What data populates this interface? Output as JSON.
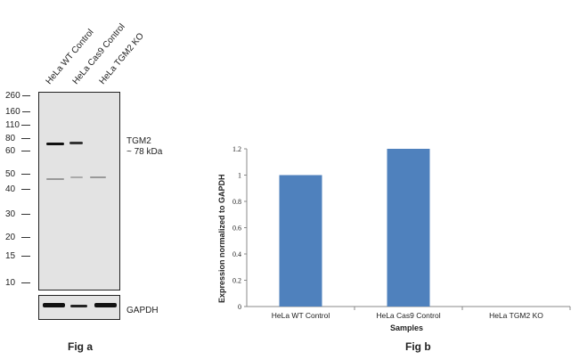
{
  "fig_a": {
    "caption": "Fig a",
    "lanes": [
      "HeLa WT Control",
      "HeLa Cas9 Control",
      "HeLa TGM2 KO"
    ],
    "markers": [
      "260",
      "160",
      "110",
      "80",
      "60",
      "50",
      "40",
      "30",
      "20",
      "15",
      "10"
    ],
    "target_label": "TGM2",
    "target_size": "~ 78 kDa",
    "loading_label": "GAPDH"
  },
  "chart_data": {
    "type": "bar",
    "title": "Fig b",
    "categories": [
      "HeLa WT Control",
      "HeLa Cas9 Control",
      "HeLa TGM2 KO"
    ],
    "values": [
      1.0,
      1.2,
      0
    ],
    "xlabel": "Samples",
    "ylabel": "Expression  normalized to GAPDH",
    "ylim": [
      0,
      1.2
    ],
    "yticks": [
      "0",
      "0.2",
      "0.4",
      "0.6",
      "0.8",
      "1",
      "1.2"
    ],
    "bar_color": "#4f81bd",
    "grid": false
  }
}
